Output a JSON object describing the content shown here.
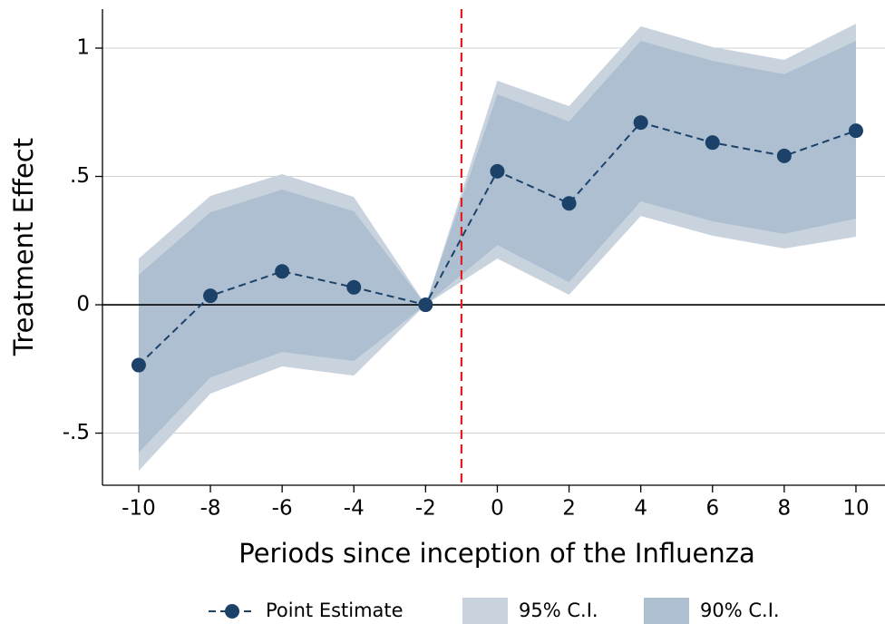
{
  "chart_data": {
    "type": "line",
    "xlabel": "Periods since inception of the Influenza",
    "ylabel": "Treatment Effect",
    "x": [
      -10,
      -8,
      -6,
      -4,
      -2,
      0,
      2,
      4,
      6,
      8,
      10
    ],
    "series": [
      {
        "name": "Point Estimate",
        "color": "#1c426a",
        "values": [
          -0.235,
          0.035,
          0.13,
          0.068,
          0,
          0.52,
          0.395,
          0.71,
          0.632,
          0.58,
          0.678
        ]
      },
      {
        "name": "95% C.I.",
        "color": "#c9d3de",
        "lower": [
          -0.647,
          -0.346,
          -0.24,
          -0.276,
          0,
          0.18,
          0.039,
          0.346,
          0.269,
          0.219,
          0.265
        ],
        "upper": [
          0.18,
          0.424,
          0.509,
          0.42,
          0,
          0.873,
          0.774,
          1.085,
          1.004,
          0.954,
          1.095
        ]
      },
      {
        "name": "90% C.I.",
        "color": "#adbfd0",
        "lower": [
          -0.576,
          -0.283,
          -0.184,
          -0.219,
          0,
          0.233,
          0.088,
          0.403,
          0.325,
          0.276,
          0.336
        ],
        "upper": [
          0.117,
          0.36,
          0.449,
          0.364,
          0,
          0.82,
          0.714,
          1.028,
          0.95,
          0.898,
          1.028
        ]
      }
    ],
    "xlim": [
      -11.01,
      10.81
    ],
    "ylim": [
      -0.703,
      1.152
    ],
    "xticks": [
      -10,
      -8,
      -6,
      -4,
      -2,
      0,
      2,
      4,
      6,
      8,
      10
    ],
    "yticks": [
      {
        "value": -0.5,
        "label": "-.5"
      },
      0,
      {
        "value": 0.5,
        "label": ".5"
      },
      1
    ],
    "grid": true,
    "hline": 0,
    "vline": -1,
    "vline_color": "#e02020",
    "legend": "bottom"
  }
}
